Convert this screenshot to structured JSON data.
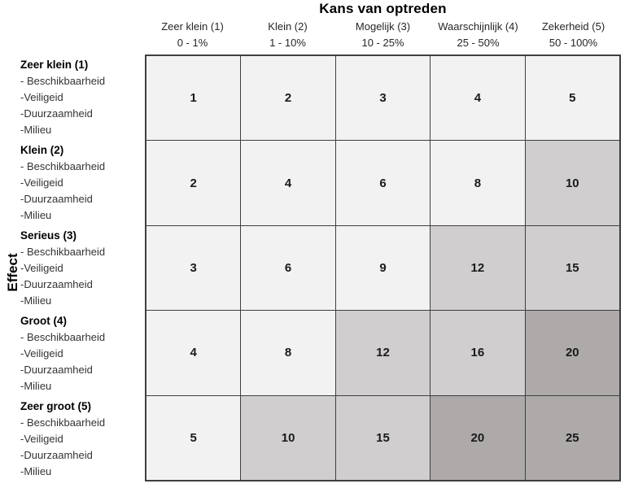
{
  "chart_data": {
    "type": "heatmap",
    "title": "Kans van optreden",
    "xlabel": "Kans van optreden",
    "ylabel": "Effect",
    "legend_position": "none",
    "grid": true,
    "columns": [
      {
        "label": "Zeer klein (1)",
        "range": "0 - 1%"
      },
      {
        "label": "Klein (2)",
        "range": "1 - 10%"
      },
      {
        "label": "Mogelijk (3)",
        "range": "10 - 25%"
      },
      {
        "label": "Waarschijnlijk (4)",
        "range": "25 - 50%"
      },
      {
        "label": "Zekerheid (5)",
        "range": "50 - 100%"
      }
    ],
    "rows": [
      {
        "label": "Zeer klein (1)",
        "aspects": [
          "- Beschikbaarheid",
          "-Veiligeid",
          "-Duurzaamheid",
          "-Milieu"
        ],
        "values": [
          1,
          2,
          3,
          4,
          5
        ],
        "tiers": [
          "low",
          "low",
          "low",
          "low",
          "low"
        ]
      },
      {
        "label": "Klein (2)",
        "aspects": [
          "- Beschikbaarheid",
          "-Veiligeid",
          "-Duurzaamheid",
          "-Milieu"
        ],
        "values": [
          2,
          4,
          6,
          8,
          10
        ],
        "tiers": [
          "low",
          "low",
          "low",
          "low",
          "medium"
        ]
      },
      {
        "label": "Serieus (3)",
        "aspects": [
          "- Beschikbaarheid",
          "-Veiligeid",
          "-Duurzaamheid",
          "-Milieu"
        ],
        "values": [
          3,
          6,
          9,
          12,
          15
        ],
        "tiers": [
          "low",
          "low",
          "low",
          "medium",
          "medium"
        ]
      },
      {
        "label": "Groot (4)",
        "aspects": [
          "- Beschikbaarheid",
          "-Veiligeid",
          "-Duurzaamheid",
          "-Milieu"
        ],
        "values": [
          4,
          8,
          12,
          16,
          20
        ],
        "tiers": [
          "low",
          "low",
          "medium",
          "medium",
          "high"
        ]
      },
      {
        "label": "Zeer groot (5)",
        "aspects": [
          "- Beschikbaarheid",
          "-Veiligeid",
          "-Duurzaamheid",
          "-Milieu"
        ],
        "values": [
          5,
          10,
          15,
          20,
          25
        ],
        "tiers": [
          "low",
          "medium",
          "medium",
          "high",
          "high"
        ]
      }
    ],
    "tier_thresholds": {
      "low": "value < 10",
      "medium": "10 - 16",
      "high": ">= 20"
    }
  },
  "colors": {
    "low": "#f2f2f2",
    "medium": "#d0cece",
    "high": "#aeaaaa",
    "line": "#3f3f3f"
  }
}
